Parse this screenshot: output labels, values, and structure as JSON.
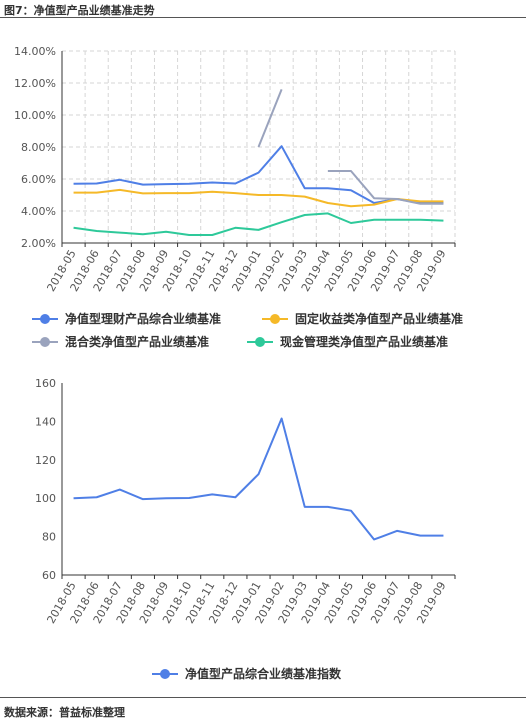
{
  "figure_title": "图7：净值型产品业绩基准走势",
  "source_note": "数据来源：普益标准整理",
  "chart_data": [
    {
      "type": "line",
      "categories": [
        "2018-05",
        "2018-06",
        "2018-07",
        "2018-08",
        "2018-09",
        "2018-10",
        "2018-11",
        "2018-12",
        "2019-01",
        "2019-02",
        "2019-03",
        "2019-04",
        "2019-05",
        "2019-06",
        "2019-07",
        "2019-08",
        "2019-09"
      ],
      "ylim": [
        2,
        14
      ],
      "yticks": [
        "2.00%",
        "4.00%",
        "6.00%",
        "8.00%",
        "10.00%",
        "12.00%",
        "14.00%"
      ],
      "grid": true,
      "legend_position": "bottom",
      "series": [
        {
          "name": "净值型理财产品综合业绩基准",
          "color": "#4f7fe6",
          "values": [
            5.7,
            5.72,
            5.95,
            5.65,
            5.68,
            5.7,
            5.78,
            5.72,
            6.4,
            8.05,
            5.42,
            5.42,
            5.3,
            4.5,
            4.75,
            4.5,
            4.52
          ]
        },
        {
          "name": "固定收益类净值型产品业绩基准",
          "color": "#f5b928",
          "values": [
            5.15,
            5.15,
            5.32,
            5.1,
            5.12,
            5.12,
            5.2,
            5.12,
            5.0,
            5.0,
            4.9,
            4.5,
            4.3,
            4.4,
            4.75,
            4.6,
            4.6
          ]
        },
        {
          "name": "混合类净值型产品业绩基准",
          "color": "#9aa3bd",
          "values": [
            null,
            null,
            null,
            null,
            null,
            null,
            null,
            null,
            8.0,
            11.6,
            null,
            6.5,
            6.5,
            4.8,
            4.75,
            4.45,
            4.45
          ]
        },
        {
          "name": "现金管理类净值型产品业绩基准",
          "color": "#2ec99a",
          "values": [
            2.95,
            2.75,
            2.65,
            2.55,
            2.7,
            2.5,
            2.5,
            2.95,
            2.82,
            3.3,
            3.75,
            3.85,
            3.25,
            3.45,
            3.45,
            3.45,
            3.4
          ]
        }
      ]
    },
    {
      "type": "line",
      "categories": [
        "2018-05",
        "2018-06",
        "2018-07",
        "2018-08",
        "2018-09",
        "2018-10",
        "2018-11",
        "2018-12",
        "2019-01",
        "2019-02",
        "2019-03",
        "2019-04",
        "2019-05",
        "2019-06",
        "2019-07",
        "2019-08",
        "2019-09"
      ],
      "ylim": [
        60,
        160
      ],
      "yticks": [
        "60",
        "80",
        "100",
        "120",
        "140",
        "160"
      ],
      "grid": false,
      "legend_position": "bottom",
      "series": [
        {
          "name": "净值型产品综合业绩基准指数",
          "color": "#4f7fe6",
          "values": [
            100,
            100.5,
            104.5,
            99.5,
            100,
            100.1,
            102,
            100.5,
            112.5,
            141.5,
            95.5,
            95.5,
            93.5,
            78.5,
            83,
            80.5,
            80.5
          ]
        }
      ]
    }
  ]
}
